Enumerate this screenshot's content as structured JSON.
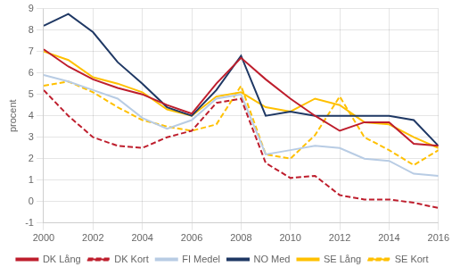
{
  "chart_data": {
    "type": "line",
    "ylabel": "procent",
    "x": [
      2000,
      2001,
      2002,
      2003,
      2004,
      2005,
      2006,
      2007,
      2008,
      2009,
      2010,
      2011,
      2012,
      2013,
      2014,
      2015,
      2016
    ],
    "xlim": [
      2000,
      2016
    ],
    "xticks": [
      2000,
      2002,
      2004,
      2006,
      2008,
      2010,
      2012,
      2014,
      2016
    ],
    "ylim": [
      -1,
      9
    ],
    "yticks": [
      -1,
      0,
      1,
      2,
      3,
      4,
      5,
      6,
      7,
      8,
      9
    ],
    "grid": true,
    "legend": "bottom",
    "series": [
      {
        "name": "DK Lång",
        "color": "#be1e2d",
        "line_style": "solid",
        "values": [
          7.1,
          6.3,
          5.7,
          5.3,
          5.0,
          4.5,
          4.1,
          5.5,
          6.7,
          5.7,
          4.8,
          4.0,
          3.3,
          3.7,
          3.7,
          2.7,
          2.6
        ]
      },
      {
        "name": "DK Kort",
        "color": "#be1e2d",
        "line_style": "dashed",
        "values": [
          5.2,
          4.0,
          3.0,
          2.6,
          2.5,
          3.0,
          3.3,
          4.6,
          4.8,
          1.8,
          1.1,
          1.2,
          0.3,
          0.1,
          0.1,
          -0.05,
          -0.3
        ]
      },
      {
        "name": "FI Medel",
        "color": "#b8cce4",
        "line_style": "solid",
        "values": [
          5.9,
          5.6,
          5.2,
          4.8,
          3.9,
          3.4,
          3.8,
          4.8,
          5.0,
          2.2,
          2.4,
          2.6,
          2.5,
          2.0,
          1.9,
          1.3,
          1.2
        ]
      },
      {
        "name": "NO Med",
        "color": "#1f3864",
        "line_style": "solid",
        "values": [
          8.2,
          8.75,
          7.9,
          6.5,
          5.5,
          4.4,
          4.0,
          5.2,
          6.8,
          4.0,
          4.2,
          4.0,
          4.0,
          4.0,
          4.0,
          3.8,
          2.6
        ]
      },
      {
        "name": "SE Lång",
        "color": "#ffc000",
        "line_style": "solid",
        "values": [
          7.0,
          6.6,
          5.8,
          5.5,
          5.1,
          4.3,
          4.0,
          4.9,
          5.1,
          4.4,
          4.2,
          4.8,
          4.5,
          3.7,
          3.6,
          3.0,
          2.5
        ]
      },
      {
        "name": "SE Kort",
        "color": "#ffc000",
        "line_style": "dashed",
        "values": [
          5.4,
          5.6,
          5.1,
          4.4,
          3.8,
          3.5,
          3.3,
          3.6,
          5.4,
          2.2,
          2.0,
          3.1,
          4.9,
          3.0,
          2.4,
          1.7,
          2.4
        ]
      }
    ]
  }
}
